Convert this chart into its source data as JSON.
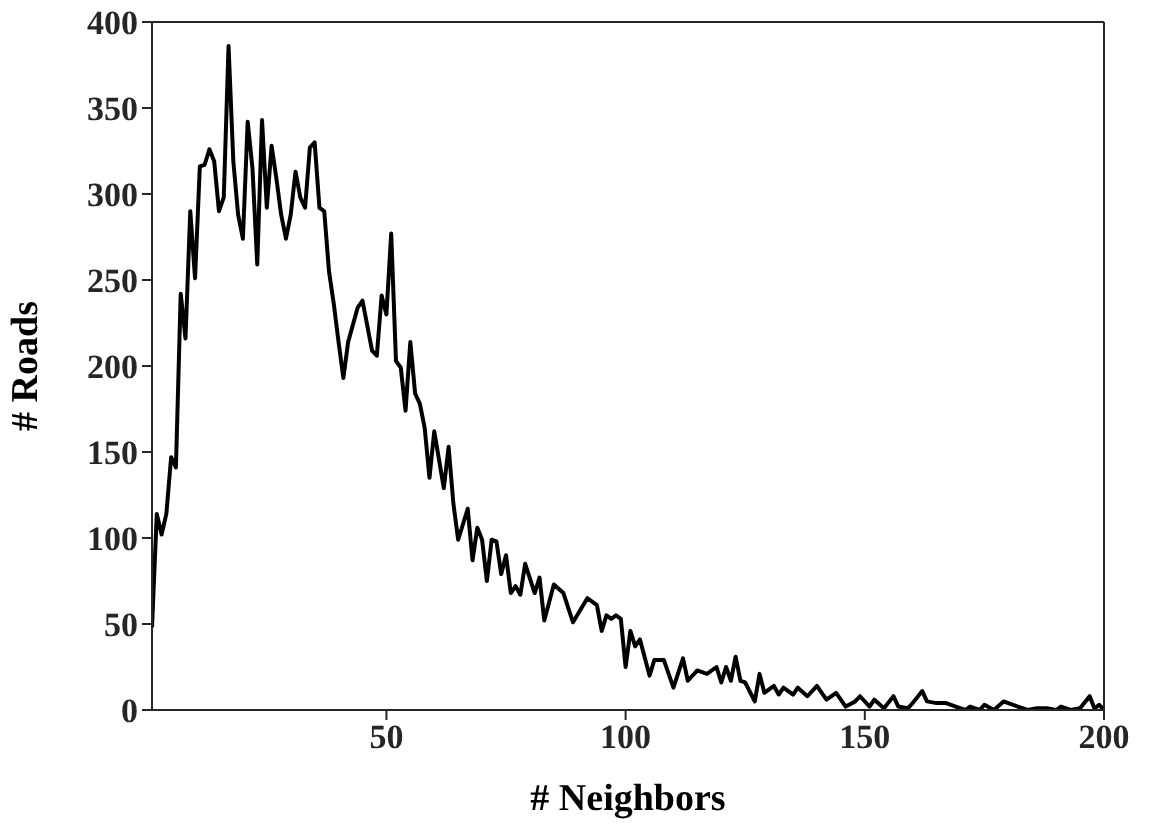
{
  "chart_data": {
    "type": "line",
    "xlabel": "# Neighbors",
    "ylabel": "# Roads",
    "xlim": [
      1,
      200
    ],
    "xticks": [
      50,
      100,
      150,
      200
    ],
    "ylim": [
      0,
      400
    ],
    "yticks": [
      0,
      50,
      100,
      150,
      200,
      250,
      300,
      350,
      400
    ],
    "marker": "none",
    "line_style": "solid",
    "x": [
      1,
      2,
      3,
      4,
      5,
      6,
      7,
      8,
      9,
      10,
      11,
      12,
      13,
      14,
      15,
      16,
      17,
      18,
      19,
      20,
      21,
      22,
      23,
      24,
      25,
      26,
      27,
      28,
      29,
      30,
      31,
      32,
      33,
      34,
      35,
      36,
      37,
      38,
      39,
      40,
      41,
      42,
      43,
      44,
      45,
      47,
      48,
      49,
      50,
      51,
      52,
      53,
      54,
      55,
      56,
      57,
      58,
      59,
      60,
      62,
      63,
      64,
      65,
      67,
      68,
      69,
      70,
      71,
      72,
      73,
      74,
      75,
      76,
      77,
      78,
      79,
      81,
      82,
      83,
      85,
      87,
      89,
      92,
      94,
      95,
      96,
      97,
      98,
      99,
      100,
      101,
      102,
      103,
      105,
      106,
      108,
      110,
      112,
      113,
      115,
      117,
      119,
      120,
      121,
      122,
      123,
      124,
      125,
      127,
      128,
      129,
      131,
      132,
      133,
      135,
      136,
      138,
      140,
      141,
      142,
      144,
      146,
      148,
      149,
      151,
      152,
      154,
      156,
      157,
      159,
      160,
      162,
      163,
      165,
      167,
      169,
      171,
      172,
      174,
      175,
      177,
      179,
      181,
      182,
      184,
      186,
      188,
      190,
      191,
      193,
      195,
      197,
      198,
      199,
      200
    ],
    "series": [
      {
        "color": "#000000",
        "values": [
          48,
          114,
          102,
          114,
          147,
          141,
          242,
          216,
          290,
          251,
          316,
          317,
          326,
          319,
          290,
          298,
          386,
          319,
          288,
          274,
          342,
          315,
          259,
          343,
          292,
          328,
          309,
          288,
          274,
          288,
          313,
          298,
          292,
          327,
          330,
          292,
          290,
          255,
          236,
          214,
          193,
          214,
          224,
          234,
          238,
          209,
          206,
          241,
          230,
          277,
          203,
          199,
          174,
          214,
          184,
          178,
          164,
          135,
          162,
          129,
          153,
          120,
          99,
          117,
          87,
          106,
          99,
          75,
          99,
          98,
          79,
          90,
          68,
          72,
          67,
          85,
          68,
          77,
          52,
          73,
          68,
          51,
          65,
          61,
          46,
          55,
          53,
          55,
          53,
          25,
          46,
          37,
          41,
          20,
          29,
          29,
          13,
          30,
          17,
          23,
          21,
          25,
          16,
          25,
          17,
          31,
          17,
          16,
          5,
          21,
          10,
          14,
          9,
          13,
          9,
          13,
          8,
          14,
          10,
          6,
          10,
          2,
          5,
          8,
          2,
          6,
          1,
          8,
          2,
          1,
          4,
          11,
          5,
          4,
          4,
          2,
          0,
          2,
          0,
          3,
          0,
          5,
          3,
          2,
          0,
          1,
          1,
          0,
          2,
          0,
          1,
          8,
          1,
          3,
          0
        ]
      }
    ]
  }
}
